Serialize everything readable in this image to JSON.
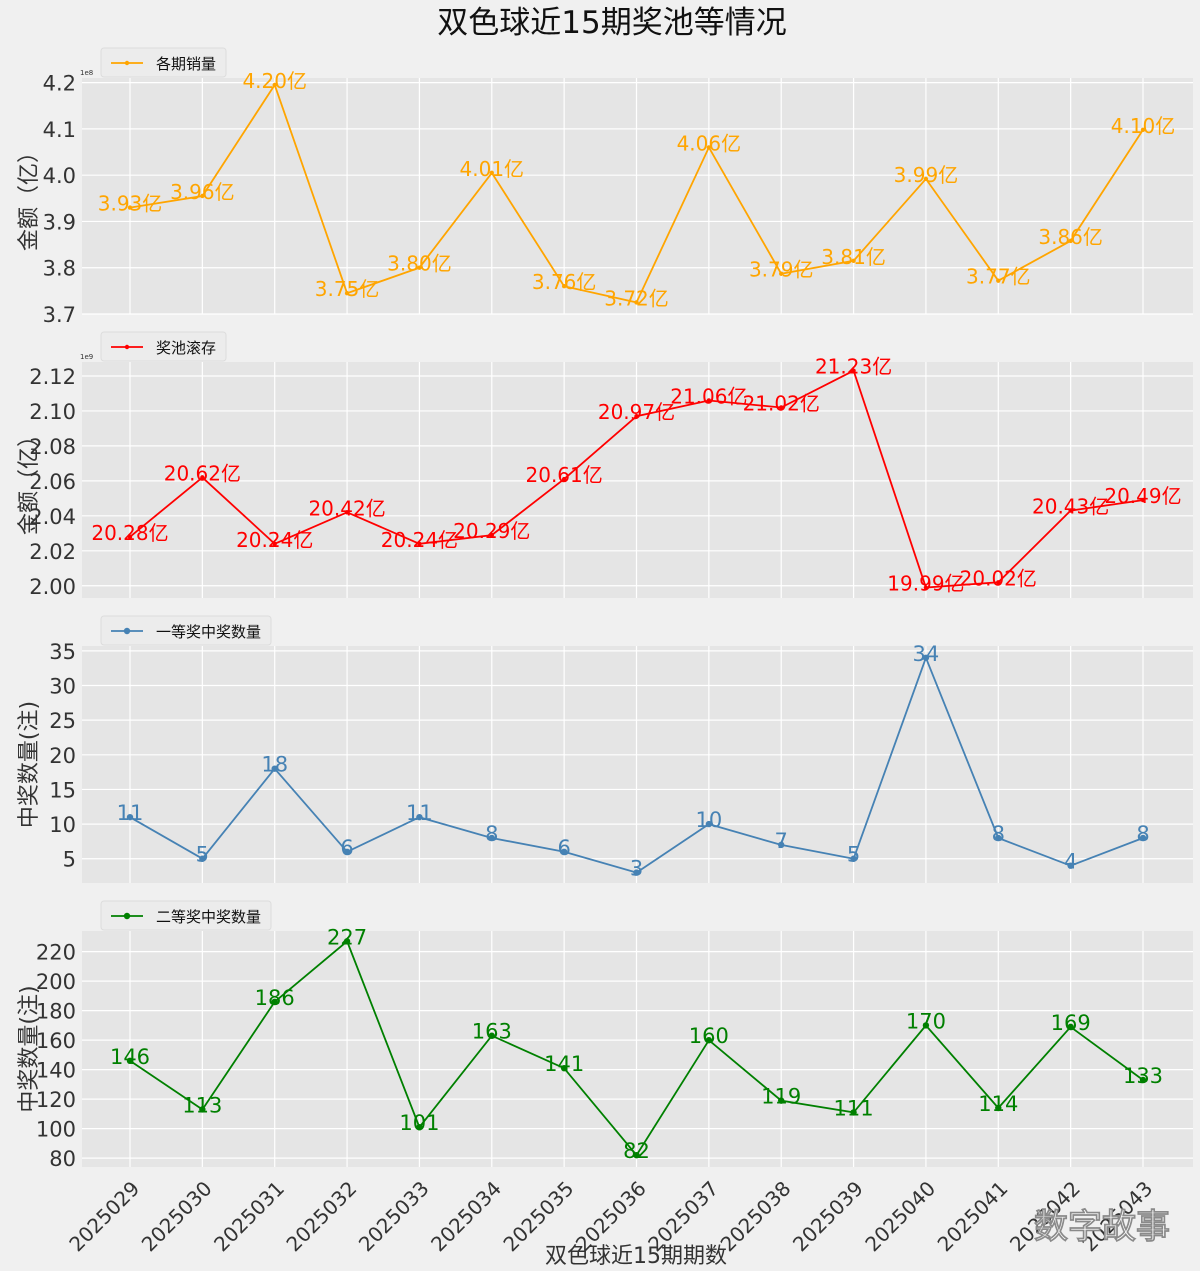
{
  "title": "双色球近15期奖池等情况",
  "xlabel": "双色球近15期期数",
  "watermark": "数字故事",
  "chart_data": [
    {
      "type": "line",
      "legend": "各期销量",
      "ylabel": "金额（亿）",
      "offset_label": "1e8",
      "color": "#ffa500",
      "categories": [
        "2025029",
        "2025030",
        "2025031",
        "2025032",
        "2025033",
        "2025034",
        "2025035",
        "2025036",
        "2025037",
        "2025038",
        "2025039",
        "2025040",
        "2025041",
        "2025042",
        "2025043"
      ],
      "values": [
        3.93,
        3.955,
        4.195,
        3.745,
        3.8,
        4.005,
        3.76,
        3.725,
        4.06,
        3.787,
        3.815,
        3.992,
        3.772,
        3.858,
        4.098
      ],
      "data_labels": [
        "3.93亿",
        "3.96亿",
        "4.20亿",
        "3.75亿",
        "3.80亿",
        "4.01亿",
        "3.76亿",
        "3.72亿",
        "4.06亿",
        "3.79亿",
        "3.81亿",
        "3.99亿",
        "3.77亿",
        "3.86亿",
        "4.10亿"
      ],
      "yticks": [
        "3.7",
        "3.8",
        "3.9",
        "4.0",
        "4.1",
        "4.2"
      ],
      "ytick_values": [
        3.7,
        3.8,
        3.9,
        4.0,
        4.1,
        4.2
      ],
      "ylim": [
        3.7,
        4.21
      ],
      "grid": true,
      "legend_position": "top-left"
    },
    {
      "type": "line",
      "legend": "奖池滚存",
      "ylabel": "金额（亿）",
      "offset_label": "1e9",
      "color": "#ff0000",
      "categories": [
        "2025029",
        "2025030",
        "2025031",
        "2025032",
        "2025033",
        "2025034",
        "2025035",
        "2025036",
        "2025037",
        "2025038",
        "2025039",
        "2025040",
        "2025041",
        "2025042",
        "2025043"
      ],
      "values": [
        2.028,
        2.062,
        2.024,
        2.042,
        2.024,
        2.029,
        2.061,
        2.097,
        2.106,
        2.102,
        2.123,
        1.999,
        2.002,
        2.043,
        2.049
      ],
      "data_labels": [
        "20.28亿",
        "20.62亿",
        "20.24亿",
        "20.42亿",
        "20.24亿",
        "20.29亿",
        "20.61亿",
        "20.97亿",
        "21.06亿",
        "21.02亿",
        "21.23亿",
        "19.99亿",
        "20.02亿",
        "20.43亿",
        "20.49亿"
      ],
      "yticks": [
        "2.00",
        "2.02",
        "2.04",
        "2.06",
        "2.08",
        "2.10",
        "2.12"
      ],
      "ytick_values": [
        2.0,
        2.02,
        2.04,
        2.06,
        2.08,
        2.1,
        2.12
      ],
      "ylim": [
        1.993,
        2.128
      ],
      "grid": true,
      "legend_position": "top-left"
    },
    {
      "type": "line",
      "legend": "一等奖中奖数量",
      "ylabel": "中奖数量(注)",
      "color": "#4682b4",
      "categories": [
        "2025029",
        "2025030",
        "2025031",
        "2025032",
        "2025033",
        "2025034",
        "2025035",
        "2025036",
        "2025037",
        "2025038",
        "2025039",
        "2025040",
        "2025041",
        "2025042",
        "2025043"
      ],
      "values": [
        11,
        5,
        18,
        6,
        11,
        8,
        6,
        3,
        10,
        7,
        5,
        34,
        8,
        4,
        8
      ],
      "data_labels": [
        "11",
        "5",
        "18",
        "6",
        "11",
        "8",
        "6",
        "3",
        "10",
        "7",
        "5",
        "34",
        "8",
        "4",
        "8"
      ],
      "yticks": [
        "5",
        "10",
        "15",
        "20",
        "25",
        "30",
        "35"
      ],
      "ytick_values": [
        5,
        10,
        15,
        20,
        25,
        30,
        35
      ],
      "ylim": [
        1.5,
        35.7
      ],
      "grid": true,
      "legend_position": "top-left"
    },
    {
      "type": "line",
      "legend": "二等奖中奖数量",
      "ylabel": "中奖数量(注)",
      "color": "#008000",
      "categories": [
        "2025029",
        "2025030",
        "2025031",
        "2025032",
        "2025033",
        "2025034",
        "2025035",
        "2025036",
        "2025037",
        "2025038",
        "2025039",
        "2025040",
        "2025041",
        "2025042",
        "2025043"
      ],
      "values": [
        146,
        113,
        186,
        227,
        101,
        163,
        141,
        82,
        160,
        119,
        111,
        170,
        114,
        169,
        133
      ],
      "data_labels": [
        "146",
        "113",
        "186",
        "227",
        "101",
        "163",
        "141",
        "82",
        "160",
        "119",
        "111",
        "170",
        "114",
        "169",
        "133"
      ],
      "yticks": [
        "80",
        "100",
        "120",
        "140",
        "160",
        "180",
        "200",
        "220"
      ],
      "ytick_values": [
        80,
        100,
        120,
        140,
        160,
        180,
        200,
        220
      ],
      "ylim": [
        74,
        234
      ],
      "grid": true,
      "legend_position": "top-left"
    }
  ]
}
